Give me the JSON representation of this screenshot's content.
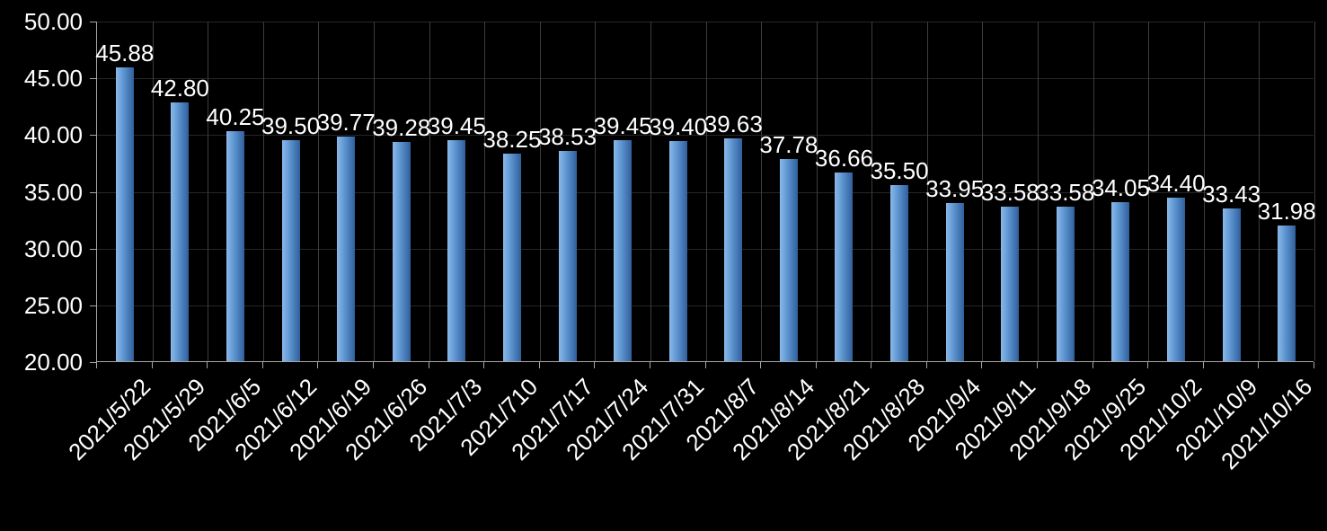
{
  "chart_data": {
    "type": "bar",
    "title": "",
    "xlabel": "",
    "ylabel": "",
    "categories": [
      "2021/5/22",
      "2021/5/29",
      "2021/6/5",
      "2021/6/12",
      "2021/6/19",
      "2021/6/26",
      "2021/7/3",
      "2021/710",
      "2021/7/17",
      "2021/7/24",
      "2021/7/31",
      "2021/8/7",
      "2021/8/14",
      "2021/8/21",
      "2021/8/28",
      "2021/9/4",
      "2021/9/11",
      "2021/9/18",
      "2021/9/25",
      "2021/10/2",
      "2021/10/9",
      "2021/10/16"
    ],
    "values": [
      45.88,
      42.8,
      40.25,
      39.5,
      39.77,
      39.28,
      39.45,
      38.25,
      38.53,
      39.45,
      39.4,
      39.63,
      37.78,
      36.66,
      35.5,
      33.95,
      33.58,
      33.58,
      34.05,
      34.4,
      33.43,
      31.98
    ],
    "value_labels": [
      "45.88",
      "42.80",
      "40.25",
      "39.50",
      "39.77",
      "39.28",
      "39.45",
      "38.25",
      "38.53",
      "39.45",
      "39.40",
      "39.63",
      "37.78",
      "36.66",
      "35.50",
      "33.95",
      "33.58",
      "33.58",
      "34.05",
      "34.40",
      "33.43",
      "31.98"
    ],
    "y_ticks": [
      "50.00",
      "45.00",
      "40.00",
      "35.00",
      "30.00",
      "25.00",
      "20.00"
    ],
    "ylim": [
      20,
      50
    ],
    "grid": "on",
    "legend": "none",
    "colors": {
      "background": "#000000",
      "bar_light": "#8ab9e9",
      "bar_mid": "#5b93cf",
      "bar_dark": "#2f5f9b",
      "gridline_vertical": "#3d3d3d",
      "gridline_horizontal": "#262626",
      "axis": "#a6a6a6",
      "label": "#ffffff"
    }
  }
}
